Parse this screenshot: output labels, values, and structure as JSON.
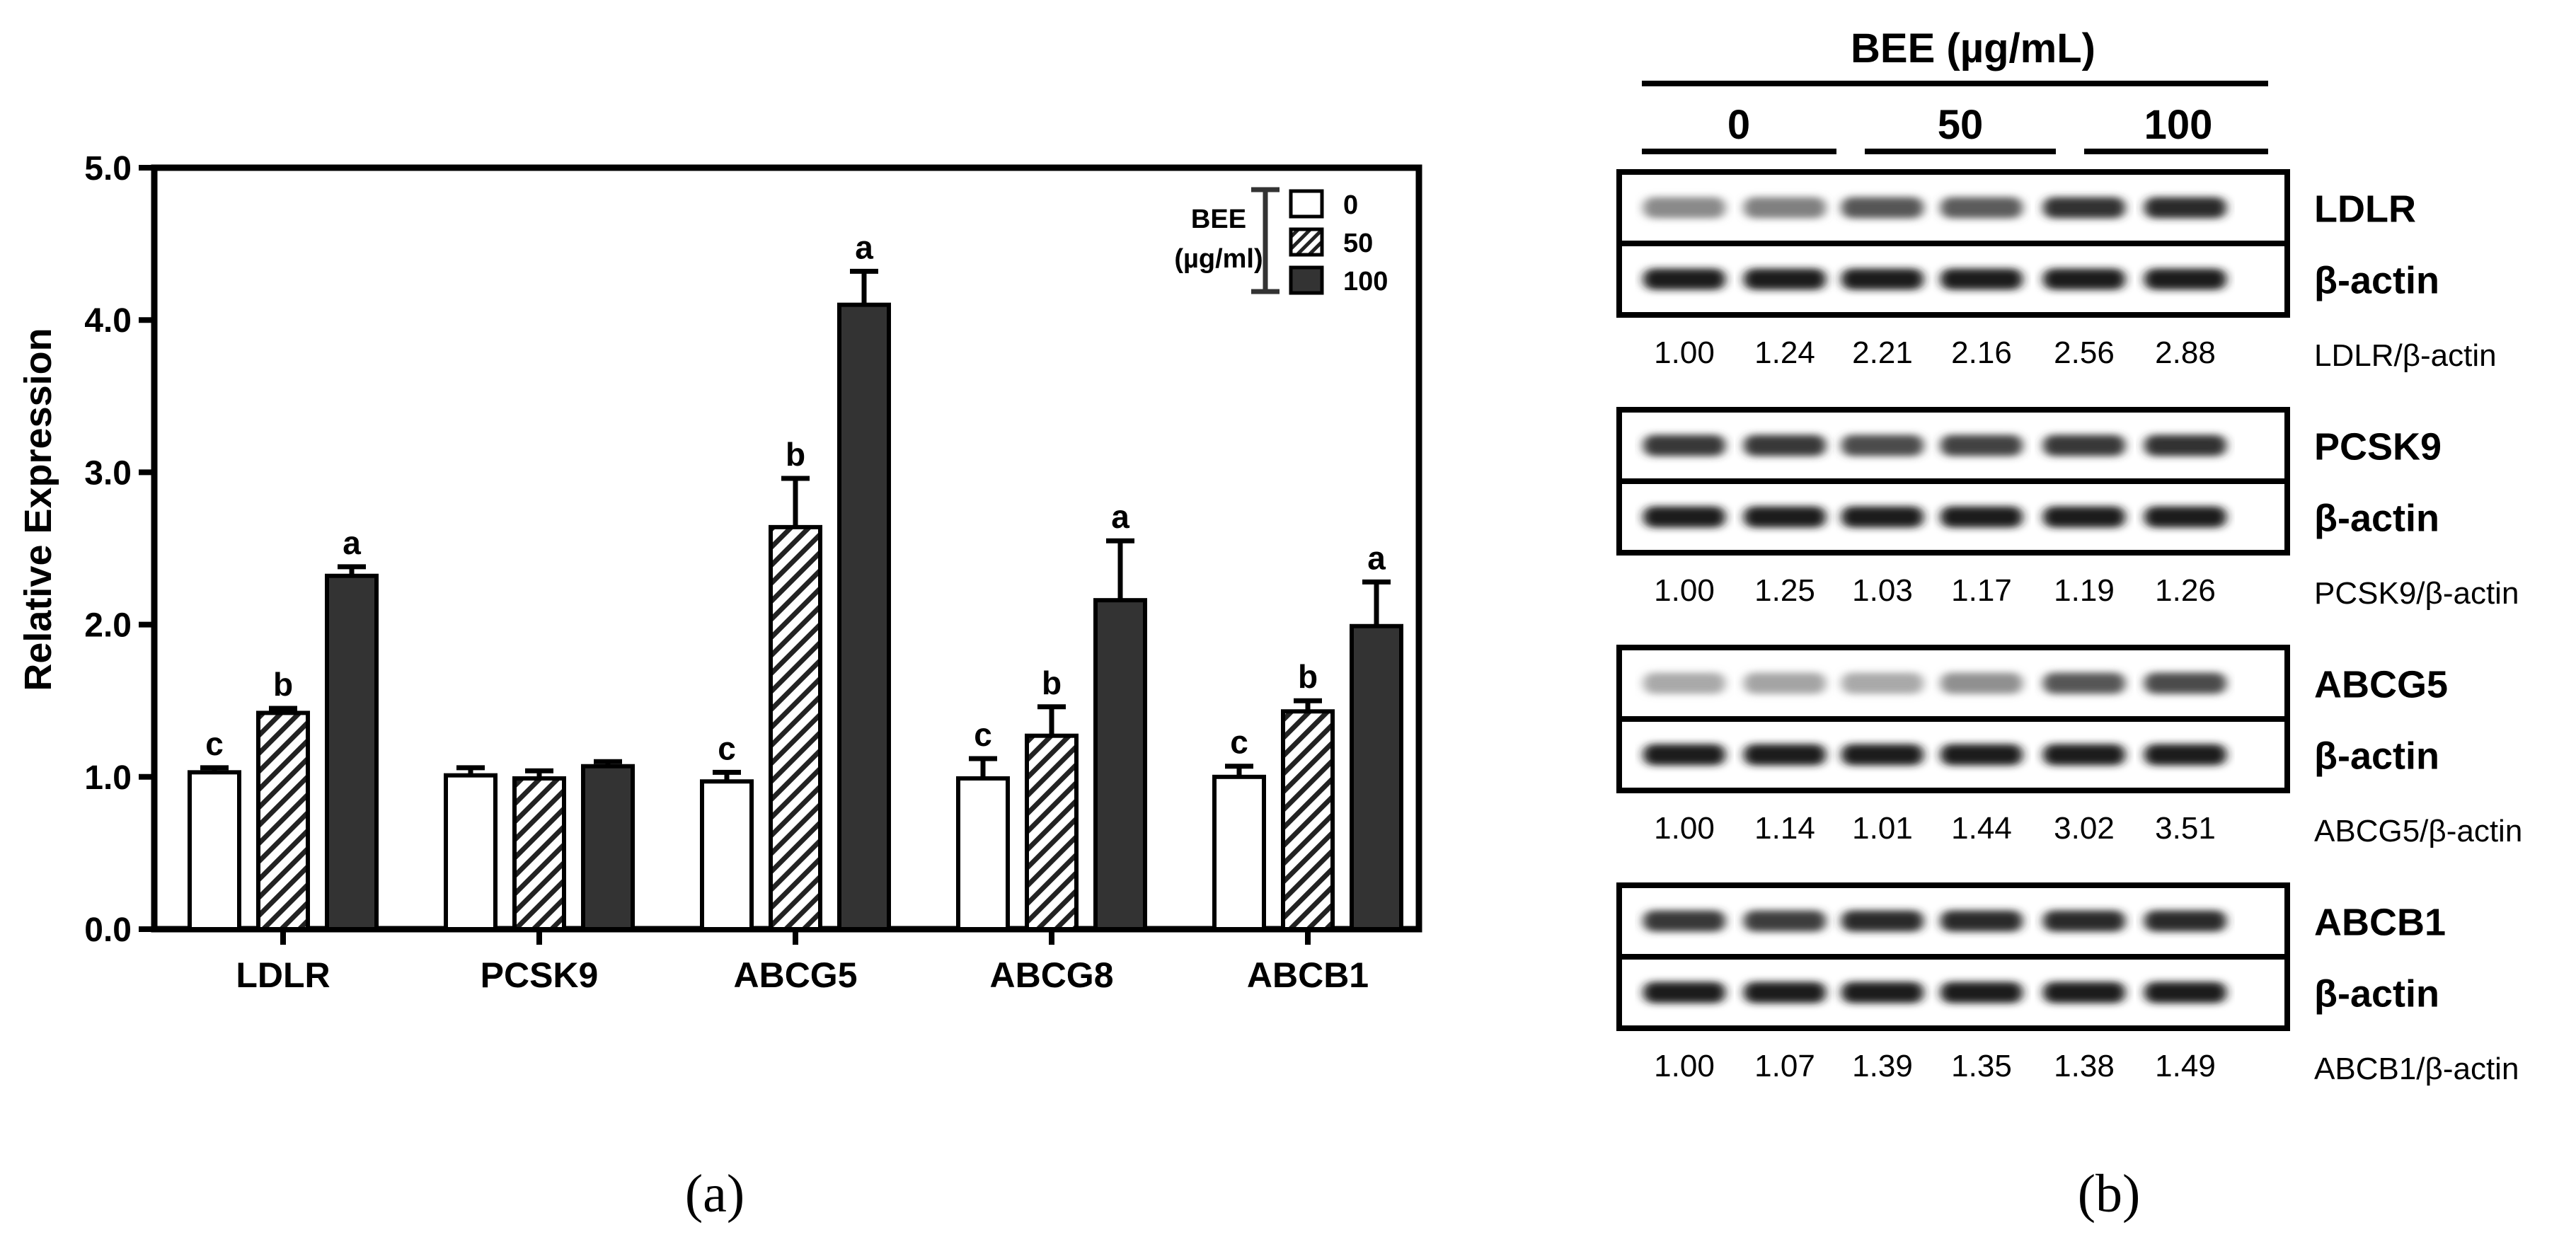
{
  "chart_data": [
    {
      "type": "bar",
      "panel_label": "(a)",
      "ylabel": "Relative Expression",
      "ylim": [
        0,
        5
      ],
      "yticks": [
        "0.0",
        "1.0",
        "2.0",
        "3.0",
        "4.0",
        "5.0"
      ],
      "categories": [
        "LDLR",
        "PCSK9",
        "ABCG5",
        "ABCG8",
        "ABCB1"
      ],
      "legend": {
        "title_line1": "BEE",
        "title_line2": "(µg/ml)",
        "placement": "top-right"
      },
      "series": [
        {
          "name": "0",
          "fill": "white",
          "values": [
            1.03,
            1.01,
            0.97,
            0.99,
            1.0
          ],
          "errors": [
            0.03,
            0.05,
            0.06,
            0.13,
            0.07
          ],
          "letters": [
            "c",
            "",
            "c",
            "c",
            "c"
          ]
        },
        {
          "name": "50",
          "fill": "hatched",
          "values": [
            1.42,
            0.99,
            2.64,
            1.27,
            1.43
          ],
          "errors": [
            0.03,
            0.05,
            0.32,
            0.19,
            0.07
          ],
          "letters": [
            "b",
            "",
            "b",
            "b",
            "b"
          ]
        },
        {
          "name": "100",
          "fill": "dark",
          "values": [
            2.32,
            1.07,
            4.1,
            2.16,
            1.99
          ],
          "errors": [
            0.06,
            0.03,
            0.22,
            0.39,
            0.29
          ],
          "letters": [
            "a",
            "",
            "a",
            "a",
            "a"
          ]
        }
      ],
      "colors": {
        "dark": "#333333",
        "outline": "#000000"
      }
    },
    {
      "type": "table",
      "panel_label": "(b)",
      "title": "BEE (µg/mL)",
      "dose_groups": [
        "0",
        "50",
        "100"
      ],
      "blots": [
        {
          "protein": "LDLR",
          "control": "β-actin",
          "ratio_label": "LDLR/β-actin",
          "ratios": [
            "1.00",
            "1.24",
            "2.21",
            "2.16",
            "2.56",
            "2.88"
          ],
          "band_intensity": [
            0.45,
            0.5,
            0.7,
            0.68,
            0.88,
            0.92
          ]
        },
        {
          "protein": "PCSK9",
          "control": "β-actin",
          "ratio_label": "PCSK9/β-actin",
          "ratios": [
            "1.00",
            "1.25",
            "1.03",
            "1.17",
            "1.19",
            "1.26"
          ],
          "band_intensity": [
            0.85,
            0.85,
            0.75,
            0.8,
            0.85,
            0.88
          ]
        },
        {
          "protein": "ABCG5",
          "control": "β-actin",
          "ratio_label": "ABCG5/β-actin",
          "ratios": [
            "1.00",
            "1.14",
            "1.01",
            "1.44",
            "3.02",
            "3.51"
          ],
          "band_intensity": [
            0.3,
            0.32,
            0.3,
            0.42,
            0.7,
            0.75
          ]
        },
        {
          "protein": "ABCB1",
          "control": "β-actin",
          "ratio_label": "ABCB1/β-actin",
          "ratios": [
            "1.00",
            "1.07",
            "1.39",
            "1.35",
            "1.38",
            "1.49"
          ],
          "band_intensity": [
            0.85,
            0.82,
            0.92,
            0.92,
            0.92,
            0.92
          ]
        }
      ]
    }
  ]
}
